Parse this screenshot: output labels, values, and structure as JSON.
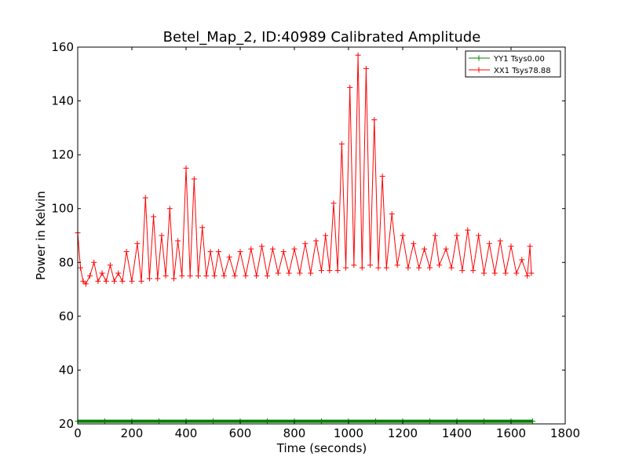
{
  "chart_data": {
    "type": "line",
    "title": "Betel_Map_2, ID:40989 Calibrated Amplitude",
    "xlabel": "Time (seconds)",
    "ylabel": "Power in Kelvin",
    "xlim": [
      0,
      1800
    ],
    "ylim": [
      20,
      160
    ],
    "xticks": [
      0,
      200,
      400,
      600,
      800,
      1000,
      1200,
      1400,
      1600,
      1800
    ],
    "yticks": [
      20,
      40,
      60,
      80,
      100,
      120,
      140,
      160
    ],
    "grid": false,
    "legend_position": "top-right",
    "series": [
      {
        "name": "YY1 Tsys0.00",
        "color": "#008000",
        "marker": "+",
        "x": [
          0,
          100,
          200,
          300,
          400,
          500,
          600,
          700,
          800,
          900,
          1000,
          1100,
          1200,
          1300,
          1400,
          1500,
          1600,
          1680
        ],
        "y": [
          21,
          21,
          21,
          21,
          21,
          21,
          21,
          21,
          21,
          21,
          21,
          21,
          21,
          21,
          21,
          21,
          21,
          21
        ]
      },
      {
        "name": "XX1 Tsys78.88",
        "color": "#ff0000",
        "marker": "+",
        "x": [
          0,
          10,
          20,
          30,
          45,
          60,
          75,
          90,
          105,
          120,
          135,
          150,
          165,
          180,
          200,
          220,
          235,
          250,
          265,
          280,
          295,
          310,
          325,
          340,
          355,
          370,
          385,
          400,
          415,
          430,
          445,
          460,
          475,
          490,
          505,
          520,
          540,
          560,
          580,
          600,
          620,
          640,
          660,
          680,
          700,
          720,
          740,
          760,
          780,
          800,
          820,
          840,
          860,
          880,
          900,
          915,
          930,
          945,
          960,
          975,
          990,
          1005,
          1020,
          1035,
          1050,
          1065,
          1080,
          1095,
          1110,
          1125,
          1140,
          1160,
          1180,
          1200,
          1220,
          1240,
          1260,
          1280,
          1300,
          1320,
          1335,
          1360,
          1380,
          1400,
          1420,
          1440,
          1460,
          1480,
          1500,
          1520,
          1540,
          1560,
          1580,
          1600,
          1620,
          1640,
          1660,
          1670,
          1675
        ],
        "y": [
          91,
          78,
          73,
          72,
          75,
          80,
          73,
          76,
          73,
          79,
          73,
          76,
          73,
          84,
          73,
          87,
          73,
          104,
          74,
          97,
          74,
          90,
          75,
          100,
          74,
          88,
          75,
          115,
          75,
          111,
          75,
          93,
          75,
          84,
          75,
          84,
          75,
          82,
          75,
          84,
          75,
          85,
          75,
          86,
          75,
          85,
          76,
          84,
          76,
          85,
          76,
          87,
          76,
          88,
          77,
          90,
          77,
          102,
          77,
          124,
          78,
          145,
          79,
          157,
          78,
          152,
          79,
          133,
          78,
          112,
          78,
          98,
          79,
          90,
          78,
          87,
          78,
          85,
          78,
          90,
          79,
          85,
          78,
          90,
          77,
          92,
          77,
          90,
          76,
          87,
          76,
          88,
          76,
          86,
          76,
          81,
          75,
          86,
          76
        ]
      }
    ]
  }
}
